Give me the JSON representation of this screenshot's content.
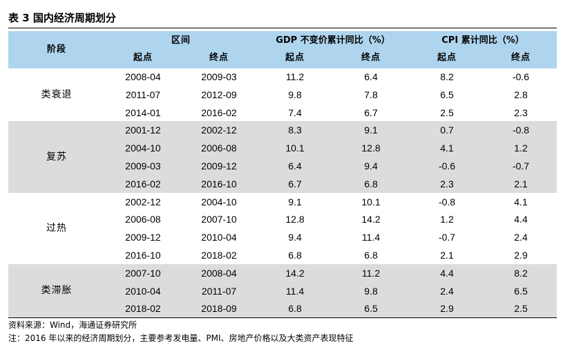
{
  "title": "表 3  国内经济周期划分",
  "header": {
    "phase": "阶段",
    "interval": "区间",
    "gdp": "GDP 不变价累计同比（%）",
    "cpi": "CPI 累计同比（%）",
    "start": "起点",
    "end": "终点"
  },
  "groups": [
    {
      "phase": "类衰退",
      "shaded": false,
      "rows": [
        {
          "start": "2008-04",
          "end": "2009-03",
          "gdp_start": "11.2",
          "gdp_end": "6.4",
          "cpi_start": "8.2",
          "cpi_end": "-0.6"
        },
        {
          "start": "2011-07",
          "end": "2012-09",
          "gdp_start": "9.8",
          "gdp_end": "7.8",
          "cpi_start": "6.5",
          "cpi_end": "2.8"
        },
        {
          "start": "2014-01",
          "end": "2016-02",
          "gdp_start": "7.4",
          "gdp_end": "6.7",
          "cpi_start": "2.5",
          "cpi_end": "2.3"
        }
      ]
    },
    {
      "phase": "复苏",
      "shaded": true,
      "rows": [
        {
          "start": "2001-12",
          "end": "2002-12",
          "gdp_start": "8.3",
          "gdp_end": "9.1",
          "cpi_start": "0.7",
          "cpi_end": "-0.8"
        },
        {
          "start": "2004-10",
          "end": "2006-08",
          "gdp_start": "10.1",
          "gdp_end": "12.8",
          "cpi_start": "4.1",
          "cpi_end": "1.2"
        },
        {
          "start": "2009-03",
          "end": "2009-12",
          "gdp_start": "6.4",
          "gdp_end": "9.4",
          "cpi_start": "-0.6",
          "cpi_end": "-0.7"
        },
        {
          "start": "2016-02",
          "end": "2016-10",
          "gdp_start": "6.7",
          "gdp_end": "6.8",
          "cpi_start": "2.3",
          "cpi_end": "2.1"
        }
      ]
    },
    {
      "phase": "过热",
      "shaded": false,
      "rows": [
        {
          "start": "2002-12",
          "end": "2004-10",
          "gdp_start": "9.1",
          "gdp_end": "10.1",
          "cpi_start": "-0.8",
          "cpi_end": "4.1"
        },
        {
          "start": "2006-08",
          "end": "2007-10",
          "gdp_start": "12.8",
          "gdp_end": "14.2",
          "cpi_start": "1.2",
          "cpi_end": "4.4"
        },
        {
          "start": "2009-12",
          "end": "2010-04",
          "gdp_start": "9.4",
          "gdp_end": "11.4",
          "cpi_start": "-0.7",
          "cpi_end": "2.4"
        },
        {
          "start": "2016-10",
          "end": "2018-02",
          "gdp_start": "6.8",
          "gdp_end": "6.8",
          "cpi_start": "2.1",
          "cpi_end": "2.9"
        }
      ]
    },
    {
      "phase": "类滞胀",
      "shaded": true,
      "rows": [
        {
          "start": "2007-10",
          "end": "2008-04",
          "gdp_start": "14.2",
          "gdp_end": "11.2",
          "cpi_start": "4.4",
          "cpi_end": "8.2"
        },
        {
          "start": "2010-04",
          "end": "2011-07",
          "gdp_start": "11.4",
          "gdp_end": "9.8",
          "cpi_start": "2.4",
          "cpi_end": "6.5"
        },
        {
          "start": "2018-02",
          "end": "2018-09",
          "gdp_start": "6.8",
          "gdp_end": "6.5",
          "cpi_start": "2.9",
          "cpi_end": "2.5"
        }
      ]
    }
  ],
  "source": "资料来源：Wind，海通证券研究所",
  "note": "注：2016 年以来的经济周期划分，主要参考发电量、PMI、房地产价格以及大类资产表现特征",
  "colors": {
    "header_bg": "#aed4ee",
    "shaded_bg": "#dcdcdc"
  }
}
